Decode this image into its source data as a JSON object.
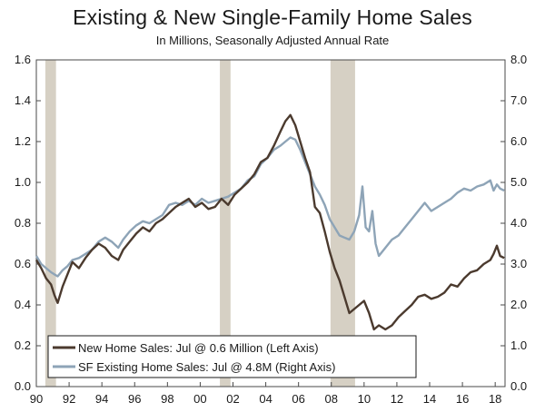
{
  "chart_data": {
    "type": "line",
    "title": "Existing & New Single-Family Home Sales",
    "subtitle": "In Millions, Seasonally Adjusted Annual Rate",
    "x_axis": {
      "min": 1990.0,
      "max": 2018.6,
      "tick_values": [
        1990,
        1992,
        1994,
        1996,
        1998,
        2000,
        2002,
        2004,
        2006,
        2008,
        2010,
        2012,
        2014,
        2016,
        2018
      ],
      "tick_labels": [
        "90",
        "92",
        "94",
        "96",
        "98",
        "00",
        "02",
        "04",
        "06",
        "08",
        "10",
        "12",
        "14",
        "16",
        "18"
      ]
    },
    "y_left": {
      "min": 0.0,
      "max": 1.6,
      "ticks": [
        0.0,
        0.2,
        0.4,
        0.6,
        0.8,
        1.0,
        1.2,
        1.4,
        1.6
      ],
      "tick_labels": [
        "0.0",
        "0.2",
        "0.4",
        "0.6",
        "0.8",
        "1.0",
        "1.2",
        "1.4",
        "1.6"
      ]
    },
    "y_right": {
      "min": 0.0,
      "max": 8.0,
      "ticks": [
        0,
        1,
        2,
        3,
        4,
        5,
        6,
        7,
        8
      ],
      "tick_labels": [
        "0.0",
        "1.0",
        "2.0",
        "3.0",
        "4.0",
        "5.0",
        "6.0",
        "7.0",
        "8.0"
      ]
    },
    "recessions": [
      [
        1990.55,
        1991.2
      ],
      [
        2001.2,
        2001.85
      ],
      [
        2007.95,
        2009.45
      ]
    ],
    "grid": false,
    "legend_position": "bottom-left",
    "series": [
      {
        "name": "New Home Sales: Jul @ 0.6 Million (Left Axis)",
        "axis": "left",
        "color": "#4b3a2e",
        "x": [
          1990.0,
          1990.3,
          1990.6,
          1990.9,
          1991.1,
          1991.3,
          1991.6,
          1991.9,
          1992.2,
          1992.6,
          1993.0,
          1993.4,
          1993.8,
          1994.2,
          1994.6,
          1995.0,
          1995.3,
          1995.7,
          1996.1,
          1996.5,
          1996.9,
          1997.3,
          1997.7,
          1998.1,
          1998.5,
          1998.9,
          1999.3,
          1999.7,
          2000.1,
          2000.5,
          2000.9,
          2001.3,
          2001.7,
          2002.1,
          2002.5,
          2002.9,
          2003.3,
          2003.7,
          2004.1,
          2004.5,
          2004.9,
          2005.2,
          2005.5,
          2005.8,
          2006.1,
          2006.4,
          2006.7,
          2007.0,
          2007.3,
          2007.6,
          2007.9,
          2008.2,
          2008.5,
          2008.8,
          2009.1,
          2009.4,
          2009.7,
          2010.0,
          2010.3,
          2010.6,
          2010.9,
          2011.3,
          2011.7,
          2012.1,
          2012.5,
          2012.9,
          2013.3,
          2013.7,
          2014.1,
          2014.5,
          2014.9,
          2015.3,
          2015.7,
          2016.1,
          2016.5,
          2016.9,
          2017.3,
          2017.7,
          2017.9,
          2018.1,
          2018.3,
          2018.55
        ],
        "y": [
          0.62,
          0.58,
          0.53,
          0.5,
          0.45,
          0.41,
          0.49,
          0.55,
          0.61,
          0.58,
          0.63,
          0.67,
          0.7,
          0.68,
          0.64,
          0.62,
          0.67,
          0.71,
          0.75,
          0.78,
          0.76,
          0.8,
          0.82,
          0.85,
          0.88,
          0.9,
          0.92,
          0.88,
          0.9,
          0.87,
          0.88,
          0.92,
          0.89,
          0.94,
          0.97,
          1.0,
          1.04,
          1.1,
          1.12,
          1.18,
          1.25,
          1.3,
          1.33,
          1.28,
          1.2,
          1.12,
          1.05,
          0.88,
          0.85,
          0.76,
          0.66,
          0.58,
          0.52,
          0.44,
          0.36,
          0.38,
          0.4,
          0.42,
          0.36,
          0.28,
          0.3,
          0.28,
          0.3,
          0.34,
          0.37,
          0.4,
          0.44,
          0.45,
          0.43,
          0.44,
          0.46,
          0.5,
          0.49,
          0.53,
          0.56,
          0.57,
          0.6,
          0.62,
          0.65,
          0.69,
          0.64,
          0.63
        ]
      },
      {
        "name": "SF Existing Home Sales: Jul @ 4.8M (Right Axis)",
        "axis": "right",
        "color": "#8ea4b7",
        "x": [
          1990.0,
          1990.3,
          1990.6,
          1990.9,
          1991.1,
          1991.3,
          1991.6,
          1991.9,
          1992.2,
          1992.6,
          1993.0,
          1993.4,
          1993.8,
          1994.2,
          1994.6,
          1995.0,
          1995.3,
          1995.7,
          1996.1,
          1996.5,
          1996.9,
          1997.3,
          1997.7,
          1998.1,
          1998.5,
          1998.9,
          1999.3,
          1999.7,
          2000.1,
          2000.5,
          2000.9,
          2001.3,
          2001.7,
          2002.1,
          2002.5,
          2002.9,
          2003.3,
          2003.7,
          2004.1,
          2004.5,
          2004.9,
          2005.2,
          2005.5,
          2005.8,
          2006.1,
          2006.4,
          2006.7,
          2007.0,
          2007.3,
          2007.6,
          2007.9,
          2008.2,
          2008.5,
          2008.8,
          2009.1,
          2009.4,
          2009.7,
          2009.9,
          2010.1,
          2010.3,
          2010.5,
          2010.7,
          2010.9,
          2011.3,
          2011.7,
          2012.1,
          2012.5,
          2012.9,
          2013.3,
          2013.7,
          2014.1,
          2014.5,
          2014.9,
          2015.3,
          2015.7,
          2016.1,
          2016.5,
          2016.9,
          2017.3,
          2017.7,
          2017.9,
          2018.1,
          2018.3,
          2018.55
        ],
        "y": [
          3.2,
          3.0,
          2.9,
          2.8,
          2.75,
          2.7,
          2.85,
          2.95,
          3.1,
          3.15,
          3.25,
          3.35,
          3.55,
          3.65,
          3.55,
          3.4,
          3.6,
          3.8,
          3.95,
          4.05,
          4.0,
          4.1,
          4.2,
          4.45,
          4.5,
          4.45,
          4.55,
          4.45,
          4.6,
          4.5,
          4.55,
          4.6,
          4.65,
          4.75,
          4.85,
          5.05,
          5.15,
          5.45,
          5.6,
          5.8,
          5.9,
          6.0,
          6.1,
          6.05,
          5.8,
          5.5,
          5.2,
          4.9,
          4.7,
          4.45,
          4.1,
          3.9,
          3.7,
          3.65,
          3.6,
          3.8,
          4.2,
          4.9,
          3.9,
          3.8,
          4.3,
          3.5,
          3.2,
          3.4,
          3.6,
          3.7,
          3.9,
          4.1,
          4.3,
          4.5,
          4.3,
          4.4,
          4.5,
          4.6,
          4.75,
          4.85,
          4.8,
          4.9,
          4.95,
          5.05,
          4.8,
          4.95,
          4.85,
          4.8
        ]
      }
    ]
  }
}
